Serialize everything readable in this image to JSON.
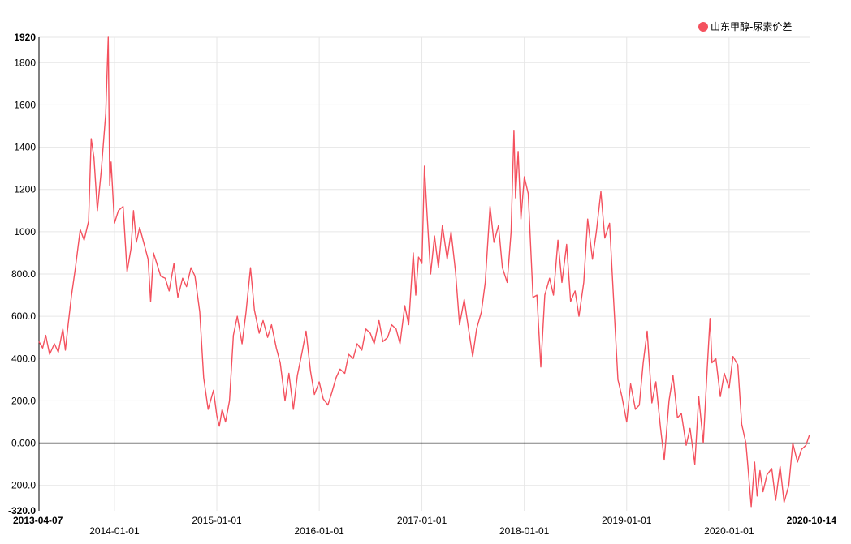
{
  "legend": {
    "label": "山东甲醇-尿素价差",
    "color": "#f4515e"
  },
  "chart_data": {
    "type": "line",
    "series_color": "#f4515e",
    "ylim": [
      -320,
      1920
    ],
    "y_ticks": [
      {
        "value": 1920,
        "label": "1920",
        "bold": true
      },
      {
        "value": 1800,
        "label": "1800",
        "bold": false
      },
      {
        "value": 1600,
        "label": "1600",
        "bold": false
      },
      {
        "value": 1400,
        "label": "1400",
        "bold": false
      },
      {
        "value": 1200,
        "label": "1200",
        "bold": false
      },
      {
        "value": 1000,
        "label": "1000",
        "bold": false
      },
      {
        "value": 800,
        "label": "800.0",
        "bold": false
      },
      {
        "value": 600,
        "label": "600.0",
        "bold": false
      },
      {
        "value": 400,
        "label": "400.0",
        "bold": false
      },
      {
        "value": 200,
        "label": "200.0",
        "bold": false
      },
      {
        "value": 0,
        "label": "0.000",
        "bold": false
      },
      {
        "value": -200,
        "label": "-200.0",
        "bold": false
      },
      {
        "value": -320,
        "label": "-320.0",
        "bold": true
      }
    ],
    "x_range": [
      "2013-04-07",
      "2020-10-14"
    ],
    "x_ticks": [
      {
        "date": "2013-04-07",
        "label": "2013-04-07",
        "bold": true,
        "row": 0
      },
      {
        "date": "2014-01-01",
        "label": "2014-01-01",
        "bold": false,
        "row": 1
      },
      {
        "date": "2015-01-01",
        "label": "2015-01-01",
        "bold": false,
        "row": 0
      },
      {
        "date": "2016-01-01",
        "label": "2016-01-01",
        "bold": false,
        "row": 1
      },
      {
        "date": "2017-01-01",
        "label": "2017-01-01",
        "bold": false,
        "row": 0
      },
      {
        "date": "2018-01-01",
        "label": "2018-01-01",
        "bold": false,
        "row": 1
      },
      {
        "date": "2019-01-01",
        "label": "2019-01-01",
        "bold": false,
        "row": 0
      },
      {
        "date": "2020-01-01",
        "label": "2020-01-01",
        "bold": false,
        "row": 1
      },
      {
        "date": "2020-10-14",
        "label": "2020-10-14",
        "bold": true,
        "row": 0
      }
    ],
    "grid": true,
    "legend_position": "top-right",
    "series": [
      {
        "name": "山东甲醇-尿素价差",
        "points": [
          [
            "2013-04-07",
            480
          ],
          [
            "2013-04-20",
            450
          ],
          [
            "2013-05-01",
            510
          ],
          [
            "2013-05-15",
            420
          ],
          [
            "2013-06-01",
            470
          ],
          [
            "2013-06-15",
            430
          ],
          [
            "2013-07-01",
            540
          ],
          [
            "2013-07-10",
            440
          ],
          [
            "2013-07-20",
            560
          ],
          [
            "2013-08-01",
            700
          ],
          [
            "2013-08-15",
            830
          ],
          [
            "2013-09-01",
            1010
          ],
          [
            "2013-09-15",
            960
          ],
          [
            "2013-10-01",
            1050
          ],
          [
            "2013-10-10",
            1440
          ],
          [
            "2013-10-20",
            1350
          ],
          [
            "2013-11-01",
            1100
          ],
          [
            "2013-11-15",
            1290
          ],
          [
            "2013-12-01",
            1560
          ],
          [
            "2013-12-10",
            1920
          ],
          [
            "2013-12-15",
            1220
          ],
          [
            "2013-12-20",
            1330
          ],
          [
            "2014-01-01",
            1040
          ],
          [
            "2014-01-15",
            1100
          ],
          [
            "2014-02-01",
            1120
          ],
          [
            "2014-02-15",
            810
          ],
          [
            "2014-03-01",
            920
          ],
          [
            "2014-03-10",
            1100
          ],
          [
            "2014-03-20",
            950
          ],
          [
            "2014-04-01",
            1020
          ],
          [
            "2014-04-15",
            950
          ],
          [
            "2014-05-01",
            870
          ],
          [
            "2014-05-10",
            670
          ],
          [
            "2014-05-20",
            900
          ],
          [
            "2014-06-01",
            850
          ],
          [
            "2014-06-15",
            790
          ],
          [
            "2014-07-01",
            780
          ],
          [
            "2014-07-15",
            720
          ],
          [
            "2014-08-01",
            850
          ],
          [
            "2014-08-15",
            690
          ],
          [
            "2014-09-01",
            780
          ],
          [
            "2014-09-15",
            740
          ],
          [
            "2014-10-01",
            830
          ],
          [
            "2014-10-15",
            790
          ],
          [
            "2014-11-01",
            620
          ],
          [
            "2014-11-15",
            310
          ],
          [
            "2014-12-01",
            160
          ],
          [
            "2014-12-20",
            250
          ],
          [
            "2015-01-01",
            130
          ],
          [
            "2015-01-10",
            80
          ],
          [
            "2015-01-20",
            160
          ],
          [
            "2015-02-01",
            100
          ],
          [
            "2015-02-15",
            200
          ],
          [
            "2015-03-01",
            510
          ],
          [
            "2015-03-15",
            600
          ],
          [
            "2015-04-01",
            470
          ],
          [
            "2015-04-15",
            620
          ],
          [
            "2015-05-01",
            830
          ],
          [
            "2015-05-15",
            630
          ],
          [
            "2015-06-01",
            520
          ],
          [
            "2015-06-15",
            580
          ],
          [
            "2015-07-01",
            500
          ],
          [
            "2015-07-15",
            560
          ],
          [
            "2015-08-01",
            450
          ],
          [
            "2015-08-15",
            380
          ],
          [
            "2015-09-01",
            200
          ],
          [
            "2015-09-15",
            330
          ],
          [
            "2015-10-01",
            160
          ],
          [
            "2015-10-15",
            320
          ],
          [
            "2015-11-01",
            430
          ],
          [
            "2015-11-15",
            530
          ],
          [
            "2015-12-01",
            340
          ],
          [
            "2015-12-15",
            230
          ],
          [
            "2016-01-01",
            290
          ],
          [
            "2016-01-15",
            210
          ],
          [
            "2016-02-01",
            180
          ],
          [
            "2016-02-15",
            240
          ],
          [
            "2016-03-01",
            310
          ],
          [
            "2016-03-15",
            350
          ],
          [
            "2016-04-01",
            330
          ],
          [
            "2016-04-15",
            420
          ],
          [
            "2016-05-01",
            400
          ],
          [
            "2016-05-15",
            470
          ],
          [
            "2016-06-01",
            440
          ],
          [
            "2016-06-15",
            540
          ],
          [
            "2016-07-01",
            520
          ],
          [
            "2016-07-15",
            470
          ],
          [
            "2016-08-01",
            580
          ],
          [
            "2016-08-15",
            480
          ],
          [
            "2016-09-01",
            500
          ],
          [
            "2016-09-15",
            560
          ],
          [
            "2016-10-01",
            540
          ],
          [
            "2016-10-15",
            470
          ],
          [
            "2016-11-01",
            650
          ],
          [
            "2016-11-15",
            560
          ],
          [
            "2016-12-01",
            900
          ],
          [
            "2016-12-10",
            700
          ],
          [
            "2016-12-20",
            880
          ],
          [
            "2017-01-01",
            850
          ],
          [
            "2017-01-10",
            1310
          ],
          [
            "2017-01-20",
            1070
          ],
          [
            "2017-02-01",
            800
          ],
          [
            "2017-02-15",
            980
          ],
          [
            "2017-03-01",
            830
          ],
          [
            "2017-03-15",
            1030
          ],
          [
            "2017-04-01",
            870
          ],
          [
            "2017-04-15",
            1000
          ],
          [
            "2017-05-01",
            810
          ],
          [
            "2017-05-15",
            560
          ],
          [
            "2017-06-01",
            680
          ],
          [
            "2017-06-15",
            550
          ],
          [
            "2017-07-01",
            410
          ],
          [
            "2017-07-15",
            540
          ],
          [
            "2017-08-01",
            620
          ],
          [
            "2017-08-15",
            760
          ],
          [
            "2017-09-01",
            1120
          ],
          [
            "2017-09-15",
            950
          ],
          [
            "2017-10-01",
            1030
          ],
          [
            "2017-10-15",
            830
          ],
          [
            "2017-11-01",
            760
          ],
          [
            "2017-11-15",
            1000
          ],
          [
            "2017-11-25",
            1480
          ],
          [
            "2017-12-01",
            1160
          ],
          [
            "2017-12-10",
            1380
          ],
          [
            "2017-12-20",
            1060
          ],
          [
            "2018-01-01",
            1260
          ],
          [
            "2018-01-15",
            1180
          ],
          [
            "2018-02-01",
            690
          ],
          [
            "2018-02-15",
            700
          ],
          [
            "2018-03-01",
            360
          ],
          [
            "2018-03-15",
            700
          ],
          [
            "2018-04-01",
            780
          ],
          [
            "2018-04-15",
            700
          ],
          [
            "2018-05-01",
            960
          ],
          [
            "2018-05-15",
            760
          ],
          [
            "2018-06-01",
            940
          ],
          [
            "2018-06-15",
            670
          ],
          [
            "2018-07-01",
            720
          ],
          [
            "2018-07-15",
            600
          ],
          [
            "2018-08-01",
            760
          ],
          [
            "2018-08-15",
            1060
          ],
          [
            "2018-09-01",
            870
          ],
          [
            "2018-09-15",
            1000
          ],
          [
            "2018-10-01",
            1190
          ],
          [
            "2018-10-15",
            970
          ],
          [
            "2018-11-01",
            1040
          ],
          [
            "2018-11-15",
            690
          ],
          [
            "2018-12-01",
            300
          ],
          [
            "2018-12-15",
            220
          ],
          [
            "2019-01-01",
            100
          ],
          [
            "2019-01-15",
            280
          ],
          [
            "2019-02-01",
            160
          ],
          [
            "2019-02-15",
            180
          ],
          [
            "2019-03-01",
            380
          ],
          [
            "2019-03-15",
            530
          ],
          [
            "2019-04-01",
            190
          ],
          [
            "2019-04-15",
            290
          ],
          [
            "2019-05-01",
            80
          ],
          [
            "2019-05-15",
            -80
          ],
          [
            "2019-06-01",
            200
          ],
          [
            "2019-06-15",
            320
          ],
          [
            "2019-07-01",
            120
          ],
          [
            "2019-07-15",
            140
          ],
          [
            "2019-08-01",
            -10
          ],
          [
            "2019-08-15",
            70
          ],
          [
            "2019-09-01",
            -100
          ],
          [
            "2019-09-15",
            220
          ],
          [
            "2019-10-01",
            0
          ],
          [
            "2019-10-15",
            350
          ],
          [
            "2019-10-25",
            590
          ],
          [
            "2019-11-01",
            380
          ],
          [
            "2019-11-15",
            400
          ],
          [
            "2019-12-01",
            220
          ],
          [
            "2019-12-15",
            330
          ],
          [
            "2020-01-01",
            260
          ],
          [
            "2020-01-15",
            410
          ],
          [
            "2020-02-01",
            370
          ],
          [
            "2020-02-15",
            90
          ],
          [
            "2020-03-01",
            0
          ],
          [
            "2020-03-10",
            -140
          ],
          [
            "2020-03-20",
            -300
          ],
          [
            "2020-04-01",
            -90
          ],
          [
            "2020-04-10",
            -250
          ],
          [
            "2020-04-20",
            -130
          ],
          [
            "2020-05-01",
            -230
          ],
          [
            "2020-05-15",
            -150
          ],
          [
            "2020-06-01",
            -120
          ],
          [
            "2020-06-15",
            -270
          ],
          [
            "2020-07-01",
            -110
          ],
          [
            "2020-07-15",
            -280
          ],
          [
            "2020-08-01",
            -200
          ],
          [
            "2020-08-15",
            0
          ],
          [
            "2020-09-01",
            -90
          ],
          [
            "2020-09-15",
            -30
          ],
          [
            "2020-10-01",
            -10
          ],
          [
            "2020-10-14",
            40
          ]
        ]
      }
    ]
  }
}
